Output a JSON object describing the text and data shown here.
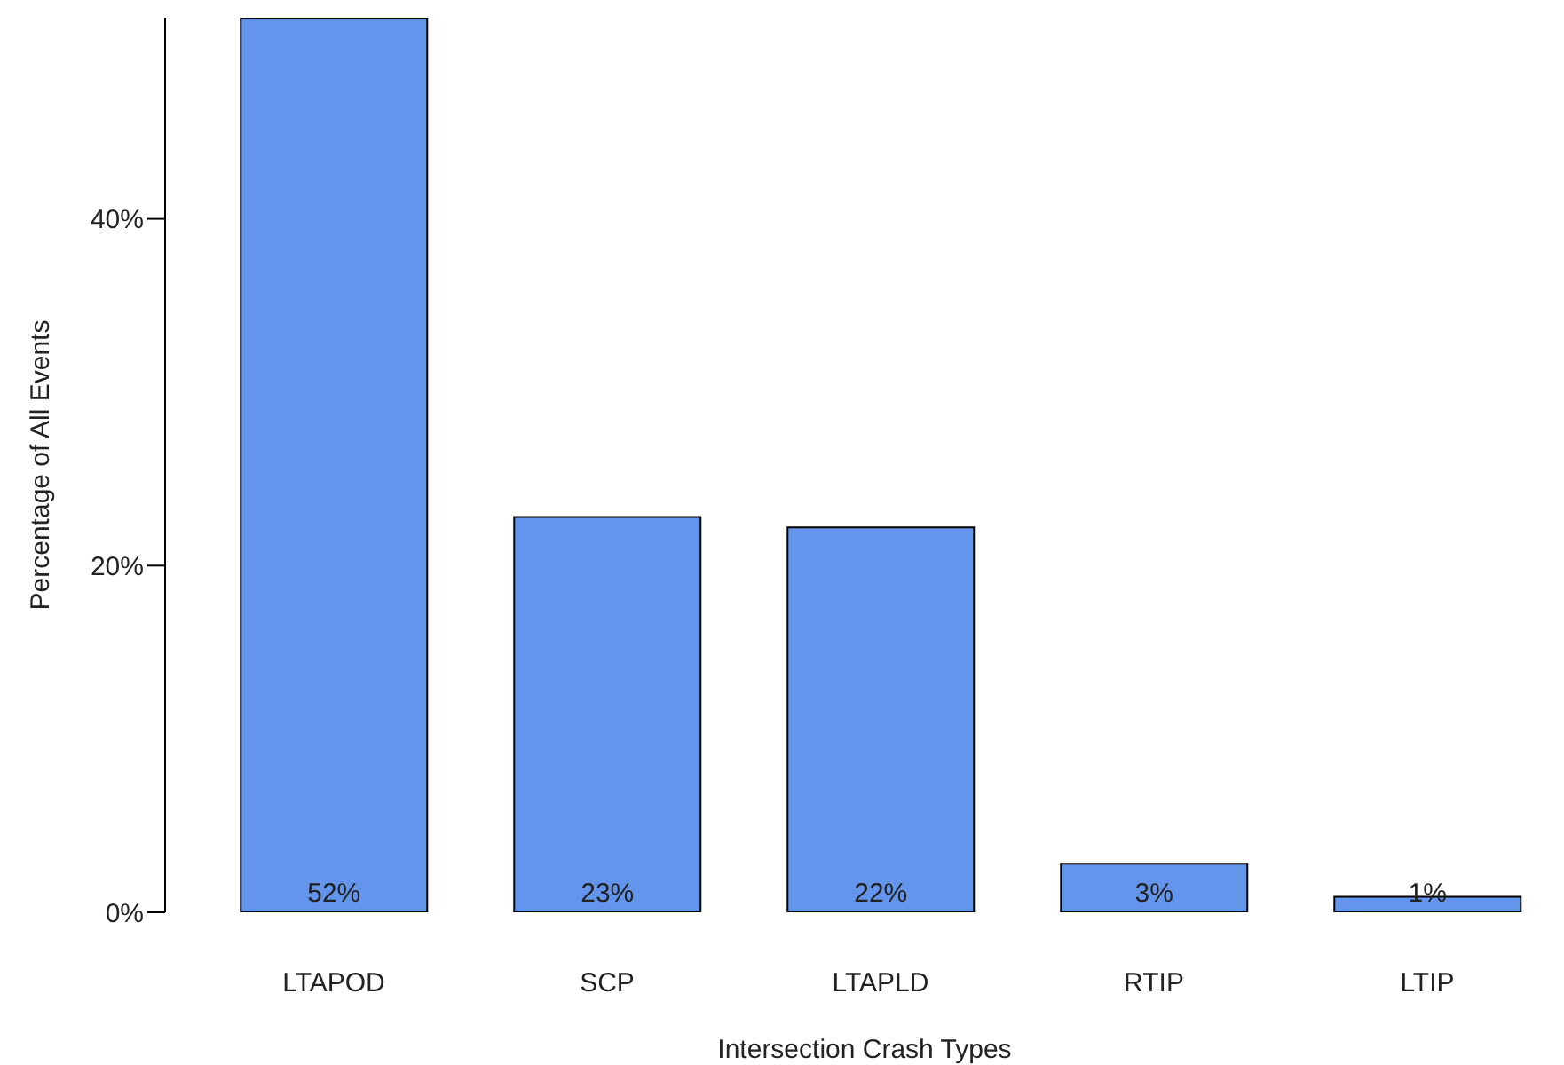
{
  "chart_data": {
    "type": "bar",
    "xlabel": "Intersection Crash Types",
    "ylabel": "Percentage of All Events",
    "categories": [
      "LTAPOD",
      "SCP",
      "LTAPLD",
      "RTIP",
      "LTIP"
    ],
    "values": [
      51.6,
      22.8,
      22.2,
      2.8,
      0.9
    ],
    "value_labels": [
      "52%",
      "23%",
      "22%",
      "3%",
      "1%"
    ],
    "color": "#6495ed",
    "ylim": [
      0,
      51.6
    ],
    "yticks": [
      {
        "value": 0,
        "label": "0%"
      },
      {
        "value": 20,
        "label": "20%"
      },
      {
        "value": 40,
        "label": "40%"
      }
    ],
    "grid": false,
    "legend": false
  }
}
